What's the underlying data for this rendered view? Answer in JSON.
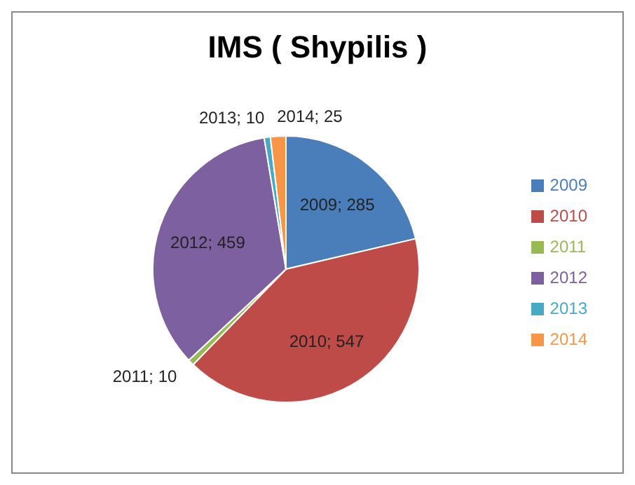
{
  "chart_data": {
    "type": "pie",
    "title": "IMS ( Shypilis )",
    "categories": [
      "2009",
      "2010",
      "2011",
      "2012",
      "2013",
      "2014"
    ],
    "values": [
      285,
      547,
      10,
      459,
      10,
      25
    ],
    "colors": [
      "#4a7ebb",
      "#be4b48",
      "#98b954",
      "#7d60a0",
      "#46aac5",
      "#f79646"
    ],
    "value_labels": [
      "2009; 285",
      "2010; 547",
      "2011; 10",
      "2012; 459",
      "2013; 10",
      "2014; 25"
    ],
    "legend": "right"
  }
}
